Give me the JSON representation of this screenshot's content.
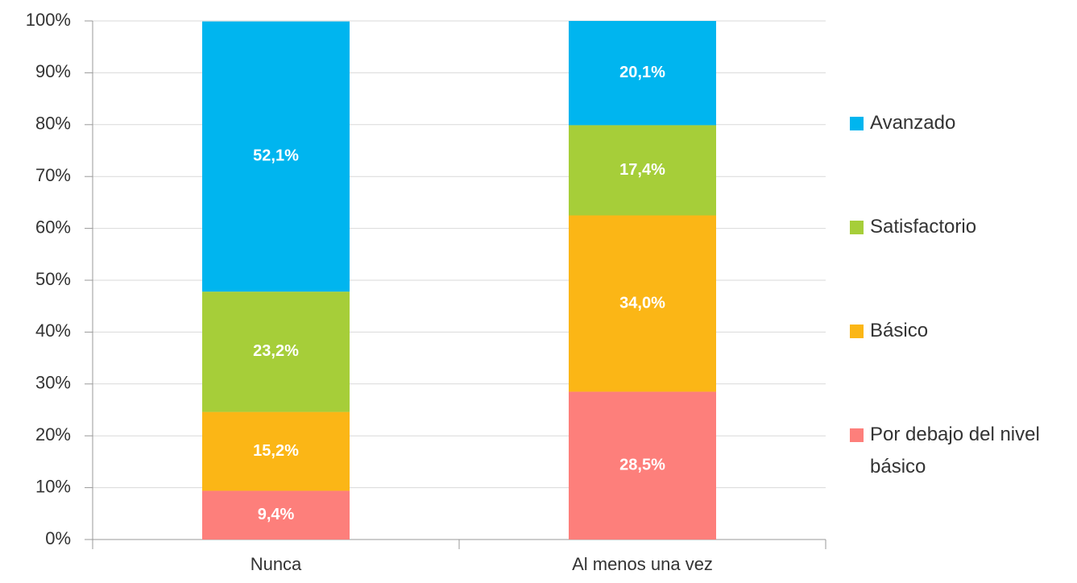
{
  "chart_data": {
    "type": "stacked_bar",
    "categories": [
      "Nunca",
      "Al menos una vez"
    ],
    "series": [
      {
        "name": "Por debajo del nivel básico",
        "color": "#fd7f7b",
        "values": [
          9.4,
          28.5
        ],
        "value_labels": [
          "9,4%",
          "28,5%"
        ]
      },
      {
        "name": "Básico",
        "color": "#fbb616",
        "values": [
          15.2,
          34.0
        ],
        "value_labels": [
          "15,2%",
          "34,0%"
        ]
      },
      {
        "name": "Satisfactorio",
        "color": "#a6ce39",
        "values": [
          23.2,
          17.4
        ],
        "value_labels": [
          "23,2%",
          "17,4%"
        ]
      },
      {
        "name": "Avanzado",
        "color": "#00b5ef",
        "values": [
          52.1,
          20.1
        ],
        "value_labels": [
          "52,1%",
          "20,1%"
        ]
      }
    ],
    "ylim": [
      0,
      100
    ],
    "yticks": [
      {
        "value": 0,
        "label": "0%"
      },
      {
        "value": 10,
        "label": "10%"
      },
      {
        "value": 20,
        "label": "20%"
      },
      {
        "value": 30,
        "label": "30%"
      },
      {
        "value": 40,
        "label": "40%"
      },
      {
        "value": 50,
        "label": "50%"
      },
      {
        "value": 60,
        "label": "60%"
      },
      {
        "value": 70,
        "label": "70%"
      },
      {
        "value": 80,
        "label": "80%"
      },
      {
        "value": 90,
        "label": "90%"
      },
      {
        "value": 100,
        "label": "100%"
      }
    ],
    "grid": true,
    "legend": "right"
  }
}
